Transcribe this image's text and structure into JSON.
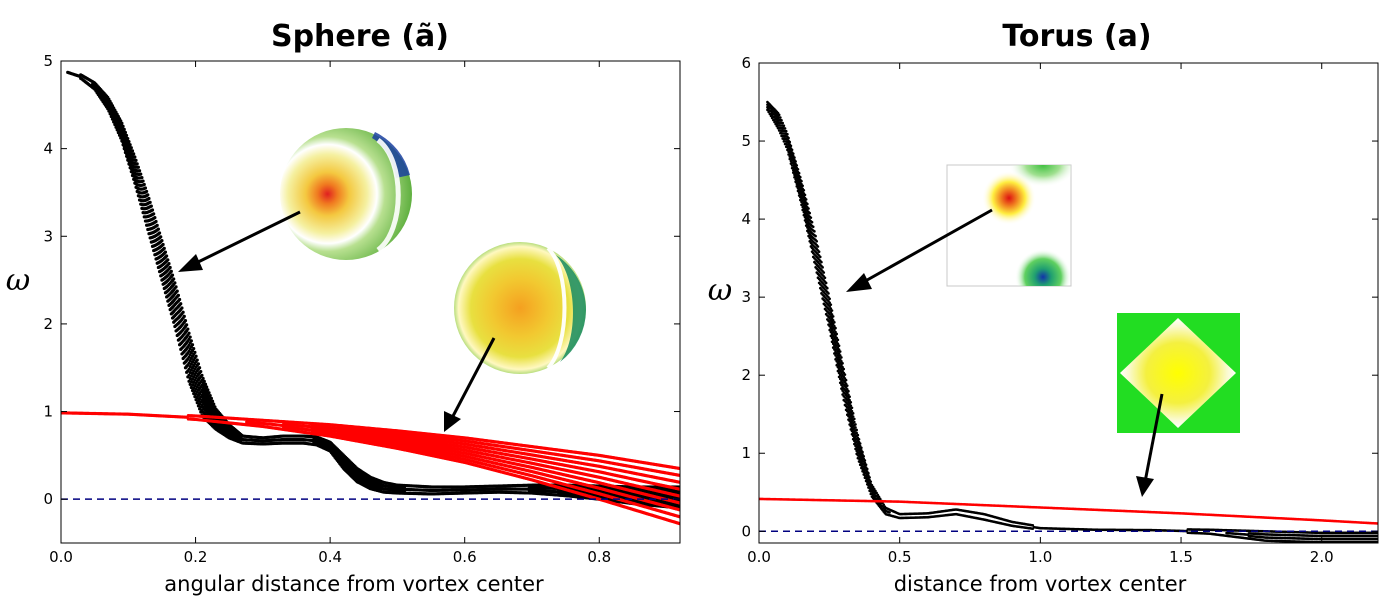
{
  "chart_data": [
    {
      "type": "scatter",
      "title": "Sphere (ã)",
      "xlabel": "angular distance from vortex center",
      "ylabel": "ω",
      "xlim": [
        0.0,
        0.92
      ],
      "ylim": [
        -0.5,
        5.0
      ],
      "xticks": [
        "0.0",
        "0.2",
        "0.4",
        "0.6",
        "0.8"
      ],
      "yticks": [
        "0",
        "1",
        "2",
        "3",
        "4",
        "5"
      ],
      "grid": false,
      "series": [
        {
          "color": "#000000",
          "x": [
            0.01,
            0.03,
            0.05,
            0.07,
            0.09,
            0.11,
            0.13,
            0.15,
            0.17,
            0.19,
            0.21,
            0.23,
            0.25,
            0.27,
            0.3,
            0.33,
            0.36,
            0.38,
            0.4,
            0.42,
            0.44,
            0.46,
            0.48,
            0.5,
            0.55,
            0.6,
            0.65,
            0.7,
            0.75,
            0.8,
            0.85,
            0.92
          ],
          "y_upper": [
            4.88,
            4.84,
            4.75,
            4.58,
            4.3,
            3.9,
            3.45,
            2.95,
            2.45,
            1.9,
            1.4,
            1.03,
            0.85,
            0.72,
            0.7,
            0.72,
            0.72,
            0.71,
            0.65,
            0.5,
            0.35,
            0.25,
            0.19,
            0.16,
            0.14,
            0.14,
            0.15,
            0.16,
            0.16,
            0.15,
            0.14,
            0.14
          ],
          "y_lower": [
            4.86,
            4.8,
            4.68,
            4.45,
            4.1,
            3.6,
            3.05,
            2.5,
            1.95,
            1.35,
            0.95,
            0.8,
            0.7,
            0.64,
            0.63,
            0.64,
            0.64,
            0.62,
            0.55,
            0.35,
            0.2,
            0.12,
            0.08,
            0.07,
            0.06,
            0.07,
            0.08,
            0.07,
            0.04,
            0.0,
            -0.05,
            -0.1
          ]
        },
        {
          "color": "#ff0000",
          "x": [
            0.0,
            0.1,
            0.2,
            0.3,
            0.4,
            0.5,
            0.6,
            0.7,
            0.8,
            0.92
          ],
          "y_upper": [
            0.99,
            0.98,
            0.95,
            0.9,
            0.85,
            0.78,
            0.7,
            0.6,
            0.5,
            0.35
          ],
          "y_lower": [
            0.98,
            0.96,
            0.91,
            0.83,
            0.72,
            0.58,
            0.42,
            0.22,
            0.0,
            -0.28
          ]
        },
        {
          "color": "#000080",
          "style": "dashed",
          "x": [
            0.0,
            0.92
          ],
          "y": [
            0.0,
            0.0
          ]
        }
      ]
    },
    {
      "type": "scatter",
      "title": "Torus (a)",
      "xlabel": "distance from vortex center",
      "ylabel": "ω",
      "xlim": [
        0.0,
        2.2
      ],
      "ylim": [
        -0.15,
        6.0
      ],
      "xticks": [
        "0.0",
        "0.5",
        "1.0",
        "1.5",
        "2.0"
      ],
      "yticks": [
        "0",
        "1",
        "2",
        "3",
        "4",
        "5",
        "6"
      ],
      "grid": false,
      "series": [
        {
          "color": "#000000",
          "x": [
            0.03,
            0.07,
            0.1,
            0.15,
            0.2,
            0.25,
            0.3,
            0.35,
            0.4,
            0.45,
            0.5,
            0.6,
            0.7,
            0.8,
            0.9,
            1.0,
            1.2,
            1.4,
            1.6,
            1.8,
            2.0,
            2.2
          ],
          "y_upper": [
            5.5,
            5.35,
            5.1,
            4.5,
            3.8,
            3.0,
            2.1,
            1.25,
            0.6,
            0.3,
            0.22,
            0.23,
            0.28,
            0.22,
            0.12,
            0.06,
            0.04,
            0.03,
            0.02,
            0.0,
            -0.02,
            -0.02
          ],
          "y_lower": [
            5.4,
            5.15,
            4.9,
            4.2,
            3.4,
            2.6,
            1.7,
            0.95,
            0.45,
            0.22,
            0.17,
            0.18,
            0.22,
            0.15,
            0.07,
            0.02,
            0.0,
            0.0,
            -0.03,
            -0.12,
            -0.14,
            -0.14
          ]
        },
        {
          "color": "#ff0000",
          "x": [
            0.0,
            0.5,
            1.0,
            1.5,
            2.0,
            2.2
          ],
          "y_upper": [
            0.42,
            0.39,
            0.32,
            0.25,
            0.16,
            0.12
          ],
          "y_lower": [
            0.41,
            0.37,
            0.29,
            0.21,
            0.12,
            0.08
          ]
        },
        {
          "color": "#000080",
          "style": "dashed",
          "x": [
            0.0,
            2.2
          ],
          "y": [
            0.0,
            0.0
          ]
        }
      ]
    }
  ],
  "insets": {
    "sphere": [
      "sphere-vortex-center-inset",
      "sphere-off-center-inset"
    ],
    "torus": [
      "torus-vortex-center-inset",
      "torus-off-center-inset"
    ]
  },
  "colors": {
    "vortex_band": "#000000",
    "reference_band": "#ff0000",
    "zero_line": "#000080",
    "inset_green": "#22cc22",
    "inset_yellow": "#ffee00",
    "inset_red": "#dd1111",
    "inset_blue": "#1133aa"
  }
}
